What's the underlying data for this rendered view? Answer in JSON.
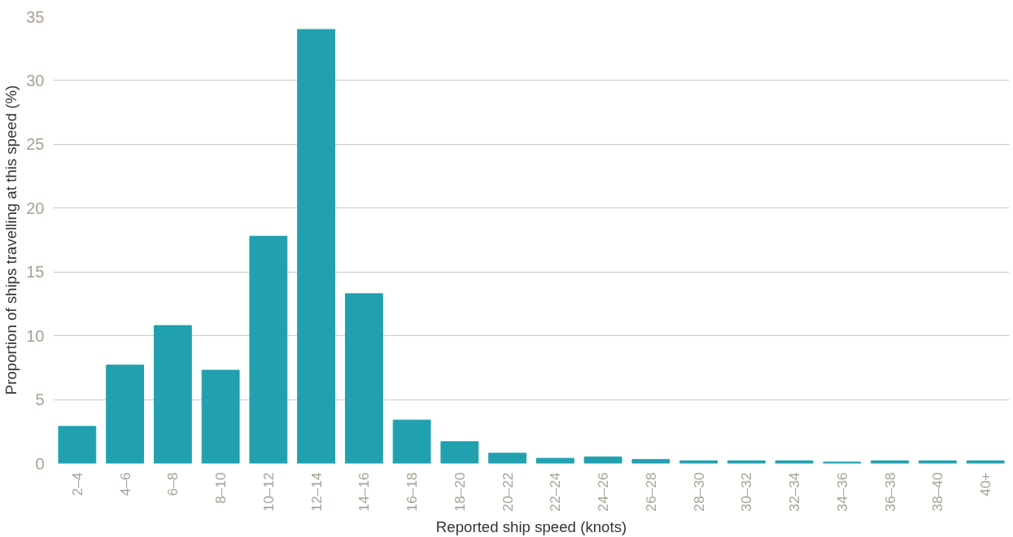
{
  "chart_data": {
    "type": "bar",
    "xlabel": "Reported ship speed (knots)",
    "ylabel": "Proportion of ships travelling at this speed (%)",
    "categories": [
      "2–4",
      "4–6",
      "6–8",
      "8–10",
      "10–12",
      "12–14",
      "14–16",
      "16–18",
      "18–20",
      "20–22",
      "22–24",
      "24–26",
      "26–28",
      "28–30",
      "30–32",
      "32–34",
      "34–36",
      "36–38",
      "38–40",
      "40+"
    ],
    "values": [
      2.9,
      7.7,
      10.8,
      7.3,
      17.8,
      34.0,
      13.3,
      3.4,
      1.7,
      0.8,
      0.4,
      0.5,
      0.3,
      0.2,
      0.2,
      0.2,
      0.1,
      0.2,
      0.2,
      0.2
    ],
    "color": "#21a0b0",
    "ylim": [
      0,
      35
    ],
    "yticks": [
      0,
      5,
      10,
      15,
      20,
      25,
      30,
      35
    ],
    "grid": "y"
  }
}
